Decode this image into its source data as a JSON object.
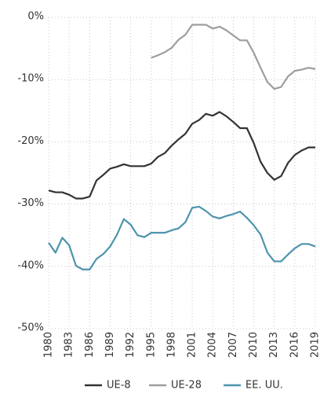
{
  "chart_data": {
    "type": "line",
    "x": [
      1980,
      1981,
      1982,
      1983,
      1984,
      1985,
      1986,
      1987,
      1988,
      1989,
      1990,
      1991,
      1992,
      1993,
      1994,
      1995,
      1996,
      1997,
      1998,
      1999,
      2000,
      2001,
      2002,
      2003,
      2004,
      2005,
      2006,
      2007,
      2008,
      2009,
      2010,
      2011,
      2012,
      2013,
      2014,
      2015,
      2016,
      2017,
      2018,
      2019
    ],
    "series": [
      {
        "name": "UE-8",
        "color": "#333333",
        "values": [
          -27.8,
          -28.1,
          -28.1,
          -28.5,
          -29.1,
          -29.1,
          -28.8,
          -26.2,
          -25.3,
          -24.3,
          -24.0,
          -23.6,
          -23.9,
          -23.9,
          -23.9,
          -23.5,
          -22.4,
          -21.8,
          -20.6,
          -19.6,
          -18.7,
          -17.1,
          -16.5,
          -15.5,
          -15.8,
          -15.2,
          -15.9,
          -16.8,
          -17.8,
          -17.8,
          -20.2,
          -23.2,
          -25.0,
          -26.1,
          -25.5,
          -23.4,
          -22.1,
          -21.4,
          -20.9,
          -20.9
        ]
      },
      {
        "name": "UE-28",
        "color": "#9e9e9e",
        "values": [
          null,
          null,
          null,
          null,
          null,
          null,
          null,
          null,
          null,
          null,
          null,
          null,
          null,
          null,
          null,
          -6.5,
          -6.1,
          -5.6,
          -4.9,
          -3.6,
          -2.8,
          -1.2,
          -1.2,
          -1.2,
          -1.8,
          -1.5,
          -2.1,
          -2.9,
          -3.7,
          -3.7,
          -5.7,
          -8.1,
          -10.4,
          -11.5,
          -11.2,
          -9.5,
          -8.6,
          -8.4,
          -8.1,
          -8.3
        ]
      },
      {
        "name": "EE. UU.",
        "color": "#4e93ad",
        "values": [
          -36.2,
          -37.8,
          -35.4,
          -36.6,
          -39.9,
          -40.5,
          -40.5,
          -38.8,
          -38.0,
          -36.8,
          -34.9,
          -32.4,
          -33.3,
          -35.0,
          -35.3,
          -34.6,
          -34.6,
          -34.6,
          -34.2,
          -33.9,
          -32.9,
          -30.6,
          -30.4,
          -31.1,
          -32.0,
          -32.3,
          -31.9,
          -31.6,
          -31.2,
          -32.2,
          -33.4,
          -34.9,
          -37.8,
          -39.2,
          -39.2,
          -38.1,
          -37.1,
          -36.4,
          -36.4,
          -36.8
        ]
      }
    ],
    "xlim": [
      1980,
      2019
    ],
    "xticks": [
      1980,
      1983,
      1986,
      1989,
      1992,
      1995,
      1998,
      2001,
      2004,
      2007,
      2010,
      2013,
      2016,
      2019
    ],
    "ylim": [
      -50,
      0
    ],
    "yticks": [
      {
        "value": 0,
        "label": "0%"
      },
      {
        "value": -10,
        "label": "-10%"
      },
      {
        "value": -20,
        "label": "-20%"
      },
      {
        "value": -30,
        "label": "-30%"
      },
      {
        "value": -40,
        "label": "-40%"
      },
      {
        "value": -50,
        "label": "-50%"
      }
    ],
    "grid": true,
    "legend": "bottom"
  }
}
